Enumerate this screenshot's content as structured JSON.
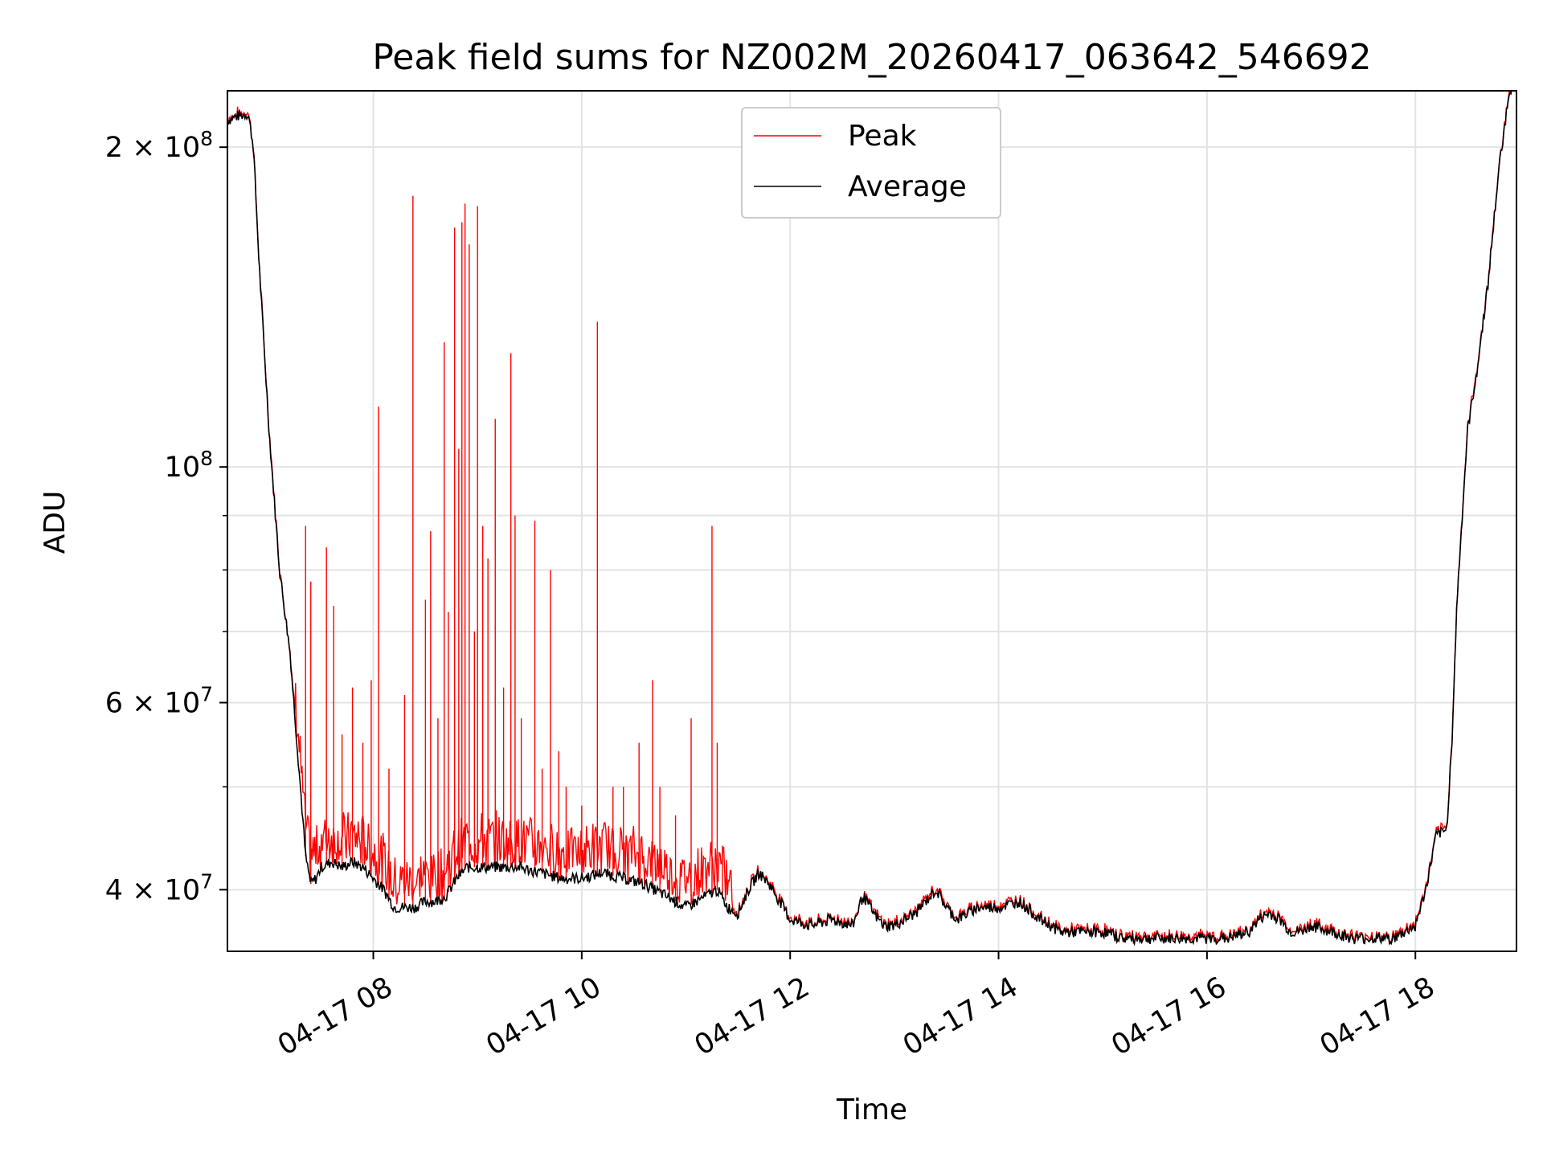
{
  "chart_data": {
    "type": "line",
    "title": "Peak field sums for NZ002M_20260417_063642_546692",
    "xlabel": "Time",
    "ylabel": "ADU",
    "yscale": "log",
    "xlim": [
      6.6,
      18.97
    ],
    "ylim": [
      35000000,
      226000000
    ],
    "grid": true,
    "legend_position": "top-center",
    "x_ticks": [
      {
        "value": 8,
        "label": "04-17 08"
      },
      {
        "value": 10,
        "label": "04-17 10"
      },
      {
        "value": 12,
        "label": "04-17 12"
      },
      {
        "value": 14,
        "label": "04-17 14"
      },
      {
        "value": 16,
        "label": "04-17 16"
      },
      {
        "value": 18,
        "label": "04-17 18"
      }
    ],
    "y_major_ticks": [
      {
        "value": 100000000,
        "base": "10",
        "exp": "8",
        "mant": ""
      },
      {
        "value": 200000000,
        "base": "10",
        "exp": "8",
        "mant": "2 × "
      },
      {
        "value": 40000000,
        "base": "10",
        "exp": "7",
        "mant": "4 × "
      },
      {
        "value": 60000000,
        "base": "10",
        "exp": "7",
        "mant": "6 × "
      }
    ],
    "y_minor_ticks": [
      50000000,
      70000000,
      80000000,
      90000000
    ],
    "series": [
      {
        "name": "Average",
        "color": "#000000",
        "x": [
          6.6,
          6.7,
          6.8,
          6.85,
          6.9,
          7.0,
          7.1,
          7.2,
          7.3,
          7.35,
          7.4,
          7.45,
          7.5,
          7.6,
          7.7,
          7.8,
          7.9,
          8.0,
          8.1,
          8.2,
          8.3,
          8.4,
          8.5,
          8.6,
          8.7,
          8.8,
          8.9,
          9.0,
          9.2,
          9.4,
          9.6,
          9.8,
          10.0,
          10.2,
          10.4,
          10.6,
          10.8,
          11.0,
          11.2,
          11.3,
          11.4,
          11.5,
          11.6,
          11.7,
          11.8,
          11.9,
          12.0,
          12.2,
          12.4,
          12.6,
          12.7,
          12.8,
          12.9,
          13.0,
          13.2,
          13.4,
          13.5,
          13.6,
          13.7,
          13.8,
          14.0,
          14.2,
          14.4,
          14.6,
          14.7,
          14.8,
          15.0,
          15.2,
          15.4,
          15.6,
          15.8,
          16.0,
          16.2,
          16.4,
          16.5,
          16.6,
          16.7,
          16.8,
          16.9,
          17.0,
          17.2,
          17.4,
          17.5,
          17.6,
          17.7,
          17.8,
          17.9,
          18.0,
          18.1,
          18.2,
          18.3,
          18.35,
          18.4,
          18.5,
          18.6,
          18.7,
          18.8,
          18.9,
          18.97
        ],
        "y": [
          212000000,
          214000000,
          215000000,
          200000000,
          158000000,
          108000000,
          80000000,
          67000000,
          50000000,
          43000000,
          40500000,
          41000000,
          42000000,
          42500000,
          42000000,
          42500000,
          42000000,
          41000000,
          40000000,
          38500000,
          38500000,
          38500000,
          39000000,
          39000000,
          39500000,
          41000000,
          42000000,
          42000000,
          42000000,
          42000000,
          41500000,
          41000000,
          41000000,
          41500000,
          41000000,
          40500000,
          39500000,
          38500000,
          39500000,
          40000000,
          38500000,
          38000000,
          40000000,
          41500000,
          40500000,
          39000000,
          37500000,
          37000000,
          37500000,
          37000000,
          39500000,
          38000000,
          37000000,
          37000000,
          38000000,
          40000000,
          38500000,
          37500000,
          38000000,
          38500000,
          38500000,
          39000000,
          37500000,
          36500000,
          36500000,
          36500000,
          36500000,
          36000000,
          36000000,
          36000000,
          36000000,
          36000000,
          36000000,
          36500000,
          37500000,
          38000000,
          37500000,
          36500000,
          36500000,
          37000000,
          36500000,
          36000000,
          36000000,
          36000000,
          36000000,
          36000000,
          36500000,
          37000000,
          40000000,
          45000000,
          45500000,
          55000000,
          75000000,
          108000000,
          125000000,
          150000000,
          190000000,
          226000000,
          230000000
        ]
      },
      {
        "name": "Peak",
        "color": "#ff0000",
        "spikes": [
          {
            "x": 7.35,
            "y": 88000000
          },
          {
            "x": 7.4,
            "y": 78000000
          },
          {
            "x": 7.55,
            "y": 84000000
          },
          {
            "x": 7.62,
            "y": 74000000
          },
          {
            "x": 7.7,
            "y": 56000000
          },
          {
            "x": 7.8,
            "y": 62000000
          },
          {
            "x": 7.9,
            "y": 55000000
          },
          {
            "x": 7.98,
            "y": 63000000
          },
          {
            "x": 8.05,
            "y": 114000000
          },
          {
            "x": 8.15,
            "y": 52000000
          },
          {
            "x": 8.3,
            "y": 61000000
          },
          {
            "x": 8.38,
            "y": 180000000
          },
          {
            "x": 8.5,
            "y": 75000000
          },
          {
            "x": 8.55,
            "y": 87000000
          },
          {
            "x": 8.62,
            "y": 58000000
          },
          {
            "x": 8.68,
            "y": 131000000
          },
          {
            "x": 8.72,
            "y": 73000000
          },
          {
            "x": 8.78,
            "y": 168000000
          },
          {
            "x": 8.82,
            "y": 104000000
          },
          {
            "x": 8.85,
            "y": 170000000
          },
          {
            "x": 8.88,
            "y": 177000000
          },
          {
            "x": 8.92,
            "y": 162000000
          },
          {
            "x": 8.97,
            "y": 70000000
          },
          {
            "x": 9.0,
            "y": 176000000
          },
          {
            "x": 9.05,
            "y": 88000000
          },
          {
            "x": 9.1,
            "y": 82000000
          },
          {
            "x": 9.17,
            "y": 111000000
          },
          {
            "x": 9.25,
            "y": 62000000
          },
          {
            "x": 9.32,
            "y": 128000000
          },
          {
            "x": 9.36,
            "y": 90000000
          },
          {
            "x": 9.42,
            "y": 58000000
          },
          {
            "x": 9.55,
            "y": 89000000
          },
          {
            "x": 9.62,
            "y": 52000000
          },
          {
            "x": 9.7,
            "y": 80000000
          },
          {
            "x": 9.78,
            "y": 54000000
          },
          {
            "x": 9.85,
            "y": 50000000
          },
          {
            "x": 10.0,
            "y": 48000000
          },
          {
            "x": 10.15,
            "y": 137000000
          },
          {
            "x": 10.3,
            "y": 50000000
          },
          {
            "x": 10.4,
            "y": 50000000
          },
          {
            "x": 10.55,
            "y": 55000000
          },
          {
            "x": 10.68,
            "y": 63000000
          },
          {
            "x": 10.75,
            "y": 50000000
          },
          {
            "x": 10.9,
            "y": 47000000
          },
          {
            "x": 11.05,
            "y": 58000000
          },
          {
            "x": 11.25,
            "y": 88000000
          },
          {
            "x": 11.3,
            "y": 55000000
          },
          {
            "x": 11.35,
            "y": 44000000
          }
        ]
      }
    ],
    "legend": [
      {
        "label": "Peak",
        "color": "#ff0000"
      },
      {
        "label": "Average",
        "color": "#000000"
      }
    ]
  }
}
